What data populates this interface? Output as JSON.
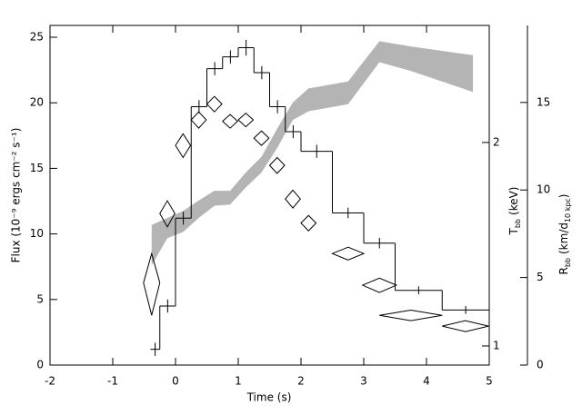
{
  "chart_data": {
    "type": "histogram",
    "xlabel": "Time (s)",
    "ylabel": "Flux (10⁻⁹ ergs cm⁻² s⁻¹)",
    "xlim": [
      -2,
      5
    ],
    "xticks": [
      -2,
      -1,
      0,
      1,
      2,
      3,
      4,
      5
    ],
    "ylim": [
      0,
      25.9
    ],
    "yticks": [
      0,
      5,
      10,
      15,
      20,
      25
    ],
    "color": "#000000",
    "bins": [
      -0.4,
      -0.25,
      0,
      0.25,
      0.5,
      0.75,
      1.0,
      1.25,
      1.5,
      1.75,
      2.0,
      2.5,
      3.0,
      3.5,
      4.25,
      5.0
    ],
    "counts": [
      1.2,
      4.5,
      11.2,
      19.7,
      22.6,
      23.5,
      24.2,
      22.3,
      19.7,
      17.8,
      16.3,
      11.6,
      9.3,
      5.7,
      4.2
    ],
    "errors": [
      0.5,
      0.5,
      0.5,
      0.5,
      0.5,
      0.5,
      0.6,
      0.5,
      0.5,
      0.5,
      0.5,
      0.4,
      0.4,
      0.3,
      0.3
    ],
    "temperature": {
      "type": "diamond",
      "axis": "y2",
      "label": {
        "main": "T",
        "sub": "bb",
        "unit": "(keV)"
      },
      "y2lim": [
        0.937,
        2.98
      ],
      "y2ticks": [
        1,
        2
      ],
      "log": true,
      "color": "#000000",
      "x": [
        -0.38,
        -0.13,
        0.12,
        0.37,
        0.62,
        0.87,
        1.12,
        1.37,
        1.62,
        1.87,
        2.12,
        2.75,
        3.25,
        3.75,
        4.62
      ],
      "x_halfwidth": [
        0.13,
        0.12,
        0.12,
        0.12,
        0.12,
        0.12,
        0.12,
        0.12,
        0.12,
        0.12,
        0.12,
        0.25,
        0.27,
        0.5,
        0.37
      ],
      "values": [
        1.24,
        1.57,
        1.98,
        2.16,
        2.28,
        2.15,
        2.16,
        2.03,
        1.85,
        1.65,
        1.52,
        1.37,
        1.23,
        1.11,
        1.07
      ],
      "errors": [
        0.13,
        0.07,
        0.08,
        0.06,
        0.06,
        0.05,
        0.05,
        0.05,
        0.05,
        0.05,
        0.04,
        0.03,
        0.03,
        0.02,
        0.02
      ]
    },
    "radius": {
      "type": "band",
      "axis": "y3",
      "label": {
        "main": "R",
        "sub": "bb",
        "unit": "(km/d",
        "unit_sub": "10 kpc",
        "close": ")"
      },
      "y3lim": [
        0,
        19.4
      ],
      "y3ticks": [
        0,
        5,
        10,
        15
      ],
      "color": "#b4b4b4",
      "x": [
        -0.38,
        -0.13,
        0.12,
        0.37,
        0.62,
        0.87,
        1.12,
        1.37,
        1.62,
        1.87,
        2.12,
        2.75,
        3.25,
        3.75,
        4.74
      ],
      "lower": [
        5.7,
        7.25,
        7.6,
        8.4,
        9.1,
        9.17,
        10.15,
        11.0,
        12.4,
        14.0,
        14.5,
        14.9,
        17.3,
        16.8,
        15.6
      ],
      "upper": [
        8.0,
        8.4,
        8.8,
        9.4,
        9.95,
        9.95,
        11.0,
        11.9,
        13.5,
        15.0,
        15.8,
        16.2,
        18.5,
        18.2,
        17.7
      ]
    }
  }
}
